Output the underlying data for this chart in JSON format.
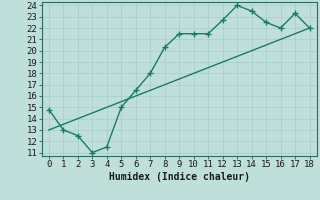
{
  "x": [
    0,
    1,
    2,
    3,
    4,
    5,
    6,
    7,
    8,
    9,
    10,
    11,
    12,
    13,
    14,
    15,
    16,
    17,
    18
  ],
  "y_curve": [
    14.8,
    13.0,
    12.5,
    11.0,
    11.5,
    15.0,
    16.5,
    18.0,
    20.3,
    21.5,
    21.5,
    21.5,
    22.7,
    24.0,
    23.5,
    22.5,
    22.0,
    23.3,
    22.0
  ],
  "y_line": [
    13.0,
    13.5,
    14.0,
    14.5,
    15.0,
    15.5,
    16.0,
    16.5,
    17.0,
    17.5,
    18.0,
    18.5,
    19.0,
    19.5,
    20.0,
    20.5,
    21.0,
    21.5,
    22.0
  ],
  "line_color": "#1a7a6a",
  "bg_color": "#bfe0da",
  "grid_color": "#a8cdc8",
  "xlabel": "Humidex (Indice chaleur)",
  "ylim": [
    11,
    24
  ],
  "xlim": [
    -0.5,
    18.5
  ],
  "yticks": [
    11,
    12,
    13,
    14,
    15,
    16,
    17,
    18,
    19,
    20,
    21,
    22,
    23,
    24
  ],
  "xticks": [
    0,
    1,
    2,
    3,
    4,
    5,
    6,
    7,
    8,
    9,
    10,
    11,
    12,
    13,
    14,
    15,
    16,
    17,
    18
  ],
  "marker": "+",
  "markersize": 4,
  "linewidth": 1.0,
  "font_size": 6.5
}
